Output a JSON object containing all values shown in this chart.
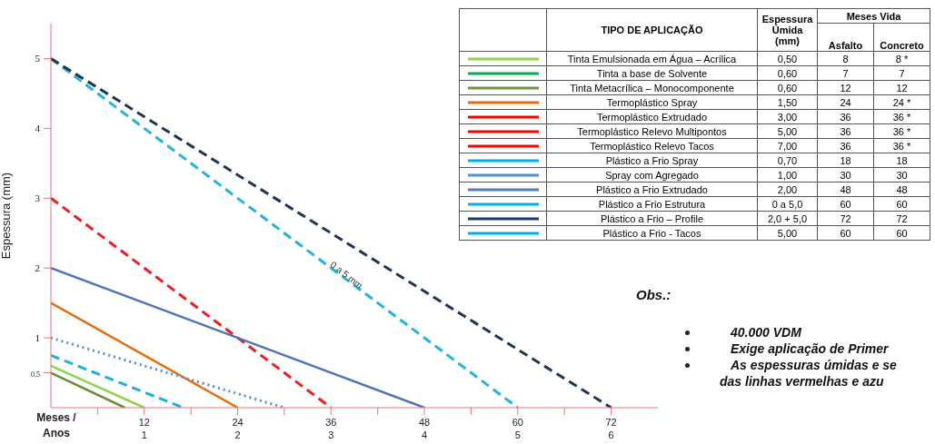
{
  "chart_data": [
    {
      "type": "line",
      "ylabel": "Espessura (mm)",
      "xlabel": "Meses /",
      "x2label": "Anos",
      "xlim": [
        0,
        78
      ],
      "x2lim": [
        0,
        6.5
      ],
      "x2ticks": [
        1,
        2,
        3,
        4,
        5,
        6
      ],
      "ylim": [
        0,
        5.5
      ],
      "xticks": [
        {
          "value": 6,
          "label": null
        },
        12,
        {
          "value": 18,
          "label": null
        },
        24,
        {
          "value": 30,
          "label": null
        },
        36,
        {
          "value": 42,
          "label": null
        },
        48,
        {
          "value": 54,
          "label": null
        },
        60,
        {
          "value": 66,
          "label": null
        },
        72
      ],
      "yticks": [
        {
          "value": 0.5,
          "label": "0,5"
        },
        1,
        2,
        3,
        4,
        5
      ],
      "series": [
        {
          "type": "line",
          "color": "#6b8a3a",
          "line_style": "solid",
          "x": [
            0,
            9.5
          ],
          "values": [
            0.5,
            0
          ]
        },
        {
          "type": "line",
          "color": "#92d050",
          "line_style": "solid",
          "x": [
            0,
            12
          ],
          "values": [
            0.6,
            0
          ]
        },
        {
          "type": "line",
          "color": "#1fb0e0",
          "line_style": "dashed",
          "x": [
            0,
            17
          ],
          "values": [
            0.75,
            0
          ]
        },
        {
          "type": "line",
          "color": "#e46c0a",
          "line_style": "solid",
          "x": [
            0,
            24
          ],
          "values": [
            1.5,
            0
          ]
        },
        {
          "type": "line",
          "color": "#5b8bd6",
          "line_style": "dotted",
          "x": [
            0,
            30
          ],
          "values": [
            1,
            0
          ]
        },
        {
          "type": "line",
          "color": "#f01c24",
          "line_style": "dashed",
          "x": [
            0,
            36
          ],
          "values": [
            3,
            0
          ]
        },
        {
          "type": "line",
          "color": "#4f74b4",
          "line_style": "solid",
          "x": [
            0,
            48
          ],
          "values": [
            2,
            0
          ]
        },
        {
          "type": "line",
          "color": "#22b4dc",
          "line_style": "dashed",
          "x": [
            0,
            60
          ],
          "values": [
            5,
            0
          ]
        },
        {
          "type": "line",
          "color": "#1f3550",
          "line_style": "dashed",
          "x": [
            0,
            72
          ],
          "values": [
            5,
            0
          ]
        }
      ],
      "annotations": [
        {
          "text": "0 a 5 mm",
          "x": 38,
          "y": 1.9
        },
        "Obs.:",
        "40.000 VDM",
        "Exige aplicação de Primer",
        "As espessuras úmidas e se",
        "das linhas vermelhas e azu"
      ]
    },
    {
      "type": "other",
      "categories": [
        "TIPO DE APLICAÇÃO",
        "Espessura\nÚmida\n(mm)",
        "Asfalto",
        "Concreto"
      ],
      "annotations": [
        "Meses Vida"
      ],
      "y_categories": [
        "Tinta Emulsionada em Água – Acrílica",
        "Tinta a base de Solvente",
        "Tinta Metacrílica – Monocomponente",
        "Termoplástico Spray",
        "Termoplástico Extrudado",
        "Termoplástico Relevo Multipontos",
        "Termoplástico Relevo Tacos",
        "Plástico a Frio Spray",
        "Spray com Agregado",
        "Plástico a Frio Extrudado",
        "Plástico a Frio Estrutura",
        "Plástico a Frio – Profile",
        "Plástico a Frio - Tacos"
      ],
      "colors": [
        "#92d050",
        "#00b050",
        "#77933c",
        "#e46c0a",
        "#ff0000",
        "#ff0000",
        "#ff0000",
        "#00b0f0",
        "#558ed5",
        "#4f81bd",
        "#00b0f0",
        "#1f3864",
        "#00b0f0"
      ],
      "cell_labels": [
        [
          "0,50",
          "8",
          "8 *"
        ],
        [
          "0,60",
          "7",
          "7"
        ],
        [
          "0,60",
          "12",
          "12"
        ],
        [
          "1,50",
          "24",
          "24 *"
        ],
        [
          "3,00",
          "36",
          "36 *"
        ],
        [
          "5,00",
          "36",
          "36 *"
        ],
        [
          "7,00",
          "36",
          "36 *"
        ],
        [
          "0,70",
          "18",
          "18"
        ],
        [
          "1,00",
          "30",
          "30"
        ],
        [
          "2,00",
          "48",
          "48"
        ],
        [
          "0 a 5,0",
          "60",
          "60"
        ],
        [
          "2,0 + 5,0",
          "72",
          "72"
        ],
        [
          "5,00",
          "60",
          "60"
        ]
      ]
    }
  ]
}
